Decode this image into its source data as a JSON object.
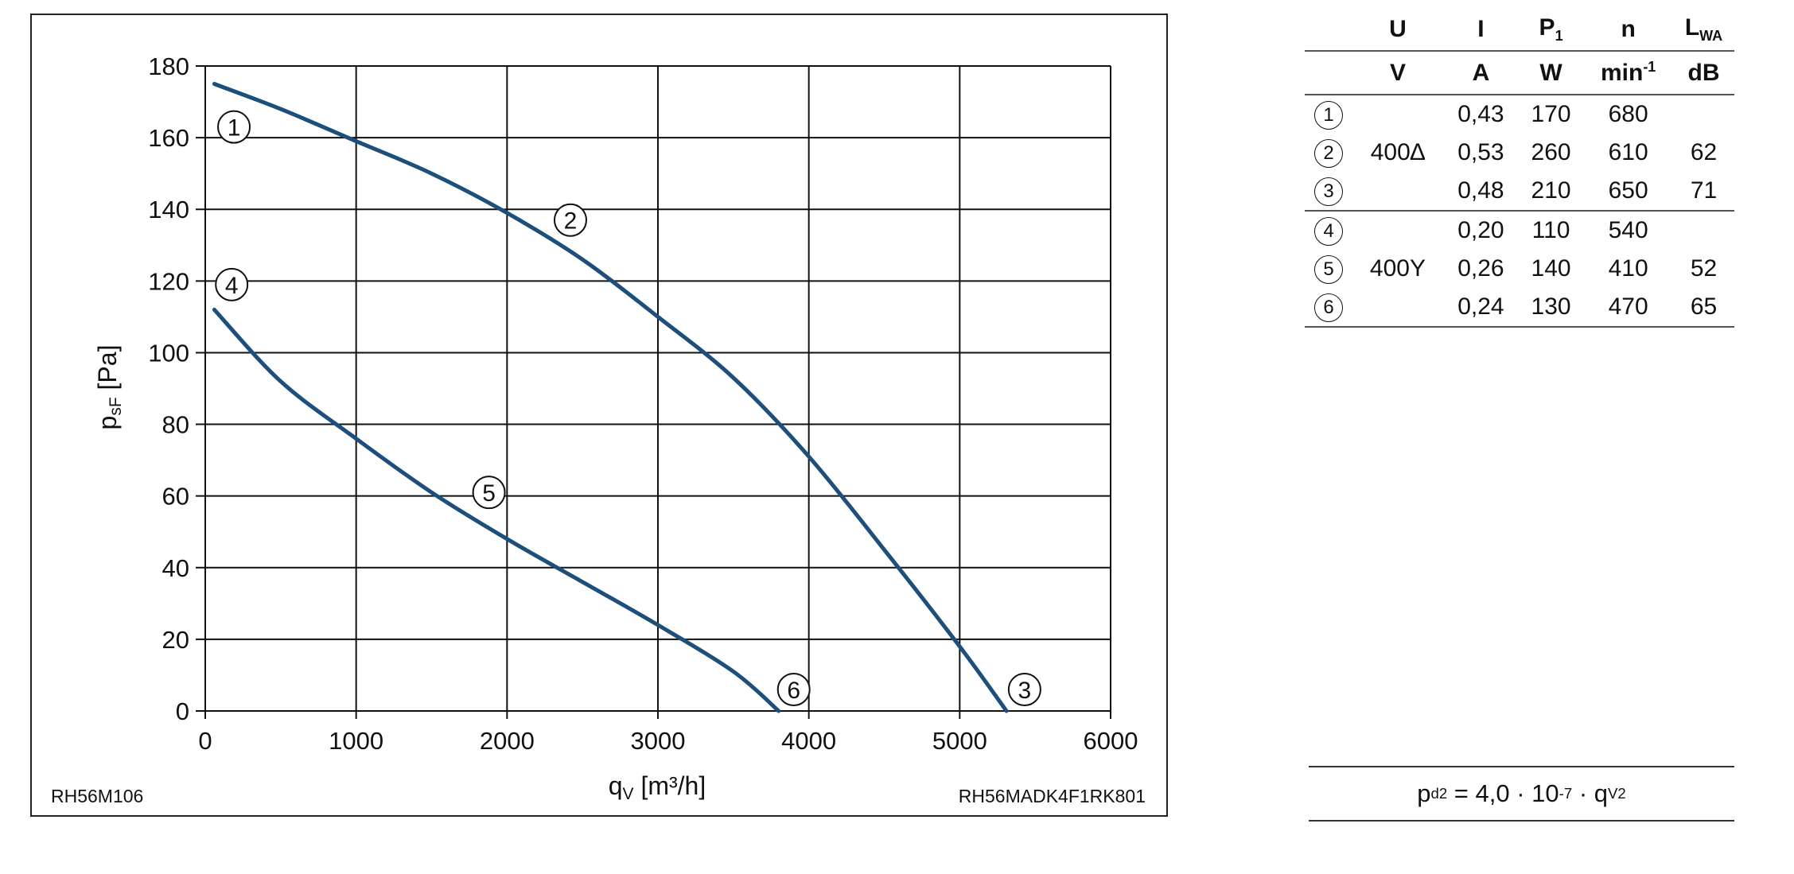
{
  "chart_data": {
    "type": "line",
    "xlabel_main": "q",
    "xlabel_sub": "V",
    "xlabel_unit": " [m³/h]",
    "ylabel_main": "p",
    "ylabel_sub": "sF",
    "ylabel_unit": " [Pa]",
    "xlim": [
      0,
      6000
    ],
    "ylim": [
      0,
      180
    ],
    "xticks": [
      0,
      1000,
      2000,
      3000,
      4000,
      5000,
      6000
    ],
    "yticks": [
      0,
      20,
      40,
      60,
      80,
      100,
      120,
      140,
      160,
      180
    ],
    "grid": true,
    "series": [
      {
        "color": "#1d4f7c",
        "points": [
          [
            60,
            175
          ],
          [
            500,
            168
          ],
          [
            1000,
            159
          ],
          [
            1500,
            150
          ],
          [
            2000,
            139
          ],
          [
            2500,
            126
          ],
          [
            3000,
            110
          ],
          [
            3500,
            93
          ],
          [
            4000,
            71
          ],
          [
            4500,
            45
          ],
          [
            5000,
            18
          ],
          [
            5310,
            0
          ]
        ]
      },
      {
        "color": "#1d4f7c",
        "points": [
          [
            60,
            112
          ],
          [
            500,
            92
          ],
          [
            1000,
            76
          ],
          [
            1500,
            61
          ],
          [
            2000,
            48
          ],
          [
            2500,
            36
          ],
          [
            3000,
            24
          ],
          [
            3500,
            11
          ],
          [
            3800,
            0
          ]
        ]
      }
    ],
    "markers": [
      {
        "label": "1",
        "x": 190,
        "y": 163
      },
      {
        "label": "2",
        "x": 2420,
        "y": 137
      },
      {
        "label": "3",
        "x": 5430,
        "y": 6
      },
      {
        "label": "4",
        "x": 175,
        "y": 119
      },
      {
        "label": "5",
        "x": 1880,
        "y": 61
      },
      {
        "label": "6",
        "x": 3900,
        "y": 6
      }
    ],
    "footer_left": "RH56M106",
    "footer_right": "RH56MADK4F1RK801"
  },
  "table": {
    "header_symbols": [
      "U",
      "I",
      "P",
      "n",
      "L"
    ],
    "p_sub": "1",
    "l_sub": "WA",
    "header_units": [
      "V",
      "A",
      "W",
      "min",
      "dB"
    ],
    "min_sup": "-1",
    "rows": [
      {
        "num": "1",
        "U": "",
        "I": "0,43",
        "P1": "170",
        "n": "680",
        "LWA": ""
      },
      {
        "num": "2",
        "U": "400∆",
        "I": "0,53",
        "P1": "260",
        "n": "610",
        "LWA": "62"
      },
      {
        "num": "3",
        "U": "",
        "I": "0,48",
        "P1": "210",
        "n": "650",
        "LWA": "71"
      },
      {
        "num": "4",
        "U": "",
        "I": "0,20",
        "P1": "110",
        "n": "540",
        "LWA": ""
      },
      {
        "num": "5",
        "U": "400Y",
        "I": "0,26",
        "P1": "140",
        "n": "410",
        "LWA": "52"
      },
      {
        "num": "6",
        "U": "",
        "I": "0,24",
        "P1": "130",
        "n": "470",
        "LWA": "65"
      }
    ]
  },
  "formula": {
    "p": "p",
    "p_sub": "d2",
    "mid": " = 4,0 · 10",
    "exp": "-7",
    "dot": " · q",
    "q_sub": "V",
    "q_sup": "2"
  }
}
